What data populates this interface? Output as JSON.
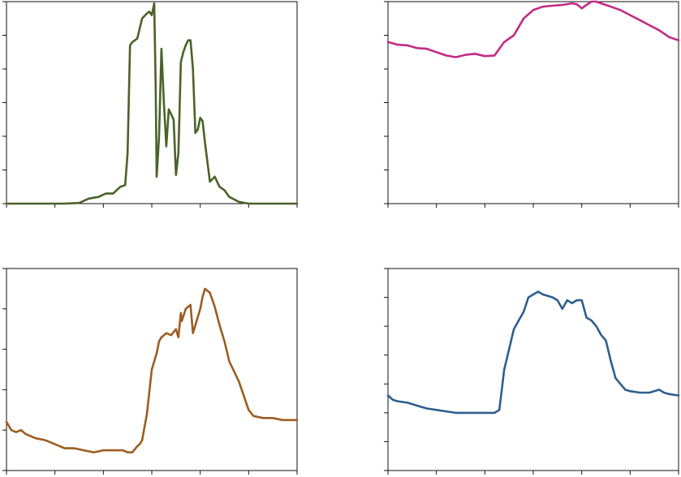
{
  "chart_data": [
    {
      "type": "line",
      "color": "#4a6328",
      "xlim": [
        0,
        6
      ],
      "ylim": [
        0,
        6
      ],
      "xticks": [
        0,
        1,
        2,
        3,
        4,
        5,
        6
      ],
      "yticks": [
        0,
        1,
        2,
        3,
        4,
        5,
        6
      ],
      "x": [
        0,
        0.4,
        0.8,
        1.2,
        1.5,
        1.7,
        1.9,
        2.05,
        2.2,
        2.35,
        2.45,
        2.5,
        2.55,
        2.6,
        2.65,
        2.7,
        2.8,
        2.9,
        2.95,
        3.0,
        3.05,
        3.08,
        3.1,
        3.15,
        3.2,
        3.25,
        3.3,
        3.35,
        3.4,
        3.45,
        3.5,
        3.55,
        3.6,
        3.65,
        3.7,
        3.75,
        3.8,
        3.85,
        3.9,
        3.95,
        4.0,
        4.05,
        4.1,
        4.2,
        4.3,
        4.4,
        4.5,
        4.6,
        4.8,
        5.0,
        5.5,
        6.0
      ],
      "y": [
        0,
        0,
        0,
        0,
        0.02,
        0.15,
        0.2,
        0.3,
        0.3,
        0.5,
        0.55,
        1.5,
        4.7,
        4.8,
        4.85,
        4.9,
        5.5,
        5.65,
        5.7,
        5.6,
        5.95,
        3.5,
        0.8,
        2.0,
        4.6,
        3.0,
        1.7,
        2.8,
        2.65,
        2.5,
        0.85,
        1.5,
        4.2,
        4.5,
        4.7,
        4.85,
        4.85,
        4.0,
        2.1,
        2.2,
        2.55,
        2.45,
        1.8,
        0.65,
        0.8,
        0.5,
        0.4,
        0.2,
        0.05,
        0,
        0,
        0
      ]
    },
    {
      "type": "line",
      "color": "#c32a83",
      "xlim": [
        0,
        6
      ],
      "ylim": [
        0,
        6
      ],
      "xticks": [
        0,
        1,
        2,
        3,
        4,
        5,
        6
      ],
      "yticks": [
        0,
        1,
        2,
        3,
        4,
        5,
        6
      ],
      "x": [
        0,
        0.2,
        0.4,
        0.6,
        0.8,
        1.0,
        1.2,
        1.4,
        1.6,
        1.8,
        2.0,
        2.2,
        2.4,
        2.6,
        2.8,
        3.0,
        3.2,
        3.4,
        3.6,
        3.8,
        3.9,
        4.0,
        4.1,
        4.2,
        4.3,
        4.4,
        4.5,
        4.6,
        4.7,
        4.8,
        5.0,
        5.2,
        5.4,
        5.6,
        5.8,
        6.0
      ],
      "y": [
        4.8,
        4.72,
        4.7,
        4.62,
        4.6,
        4.5,
        4.4,
        4.35,
        4.42,
        4.45,
        4.38,
        4.4,
        4.8,
        5.0,
        5.5,
        5.75,
        5.85,
        5.88,
        5.9,
        5.95,
        5.92,
        5.8,
        5.9,
        6.0,
        6.0,
        5.95,
        5.9,
        5.85,
        5.8,
        5.75,
        5.6,
        5.45,
        5.3,
        5.15,
        4.95,
        4.85
      ]
    },
    {
      "type": "line",
      "color": "#9c5d22",
      "xlim": [
        0,
        6
      ],
      "ylim": [
        0,
        5
      ],
      "xticks": [
        0,
        1,
        2,
        3,
        4,
        5,
        6
      ],
      "yticks": [
        0,
        1,
        2,
        3,
        4,
        5
      ],
      "x": [
        0,
        0.1,
        0.2,
        0.3,
        0.4,
        0.6,
        0.8,
        1.0,
        1.2,
        1.4,
        1.6,
        1.8,
        2.0,
        2.2,
        2.4,
        2.5,
        2.6,
        2.7,
        2.75,
        2.8,
        2.9,
        3.0,
        3.05,
        3.1,
        3.15,
        3.2,
        3.3,
        3.4,
        3.5,
        3.55,
        3.6,
        3.62,
        3.7,
        3.8,
        3.85,
        3.9,
        4.0,
        4.05,
        4.1,
        4.2,
        4.3,
        4.4,
        4.5,
        4.6,
        4.8,
        5.0,
        5.1,
        5.3,
        5.5,
        5.7,
        5.8,
        6.0
      ],
      "y": [
        1.2,
        1.0,
        0.95,
        1.0,
        0.9,
        0.8,
        0.75,
        0.65,
        0.55,
        0.55,
        0.5,
        0.45,
        0.5,
        0.5,
        0.5,
        0.45,
        0.45,
        0.6,
        0.65,
        0.75,
        1.4,
        2.5,
        2.7,
        2.9,
        3.2,
        3.3,
        3.4,
        3.35,
        3.5,
        3.3,
        3.9,
        3.7,
        4.0,
        4.1,
        3.4,
        3.6,
        4.0,
        4.3,
        4.5,
        4.4,
        4.05,
        3.6,
        3.2,
        2.7,
        2.2,
        1.5,
        1.35,
        1.3,
        1.3,
        1.25,
        1.25,
        1.25
      ]
    },
    {
      "type": "line",
      "color": "#2d5f8f",
      "xlim": [
        0,
        6
      ],
      "ylim": [
        0,
        7
      ],
      "xticks": [
        0,
        1,
        2,
        3,
        4,
        5,
        6
      ],
      "yticks": [
        0,
        1,
        2,
        3,
        4,
        5,
        6,
        7
      ],
      "x": [
        0,
        0.1,
        0.2,
        0.4,
        0.6,
        0.8,
        1.0,
        1.2,
        1.4,
        1.6,
        1.8,
        2.0,
        2.2,
        2.3,
        2.4,
        2.5,
        2.6,
        2.7,
        2.8,
        2.9,
        3.0,
        3.1,
        3.2,
        3.3,
        3.4,
        3.5,
        3.6,
        3.7,
        3.8,
        3.9,
        4.0,
        4.1,
        4.2,
        4.3,
        4.4,
        4.5,
        4.6,
        4.7,
        4.8,
        4.9,
        5.0,
        5.2,
        5.4,
        5.6,
        5.7,
        5.8,
        6.0
      ],
      "y": [
        2.6,
        2.45,
        2.4,
        2.35,
        2.25,
        2.15,
        2.1,
        2.05,
        2.0,
        2.0,
        2.0,
        2.0,
        2.0,
        2.1,
        3.5,
        4.2,
        4.9,
        5.2,
        5.5,
        6.0,
        6.1,
        6.2,
        6.1,
        6.05,
        6.0,
        5.9,
        5.6,
        5.9,
        5.8,
        5.9,
        5.9,
        5.3,
        5.2,
        5.0,
        4.7,
        4.5,
        3.8,
        3.2,
        3.0,
        2.8,
        2.75,
        2.7,
        2.7,
        2.8,
        2.7,
        2.65,
        2.6
      ]
    }
  ]
}
